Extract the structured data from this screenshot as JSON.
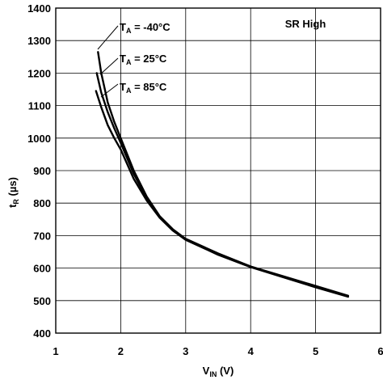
{
  "chart_data": {
    "type": "line",
    "title": "",
    "xlabel": "V",
    "xlabel_sub": "IN",
    "xlabel_unit": "(V)",
    "ylabel": "t",
    "ylabel_sub": "R",
    "ylabel_unit": "(µs)",
    "xlim": [
      1,
      6
    ],
    "ylim": [
      400,
      1400
    ],
    "x_ticks": [
      "1",
      "2",
      "3",
      "4",
      "5",
      "6"
    ],
    "y_ticks": [
      "400",
      "500",
      "600",
      "700",
      "800",
      "900",
      "1000",
      "1100",
      "1200",
      "1300",
      "1400"
    ],
    "grid": true,
    "annotation_box": "SR High",
    "series": [
      {
        "name": "T_A = -40°C",
        "label_main": "T",
        "label_sub": "A",
        "label_rest": " = -40°C",
        "color": "#000000",
        "x": [
          1.65,
          1.7,
          1.8,
          1.9,
          2.0,
          2.2,
          2.4,
          2.6,
          2.8,
          3.0,
          3.5,
          4.0,
          4.5,
          5.0,
          5.5
        ],
        "y": [
          1265,
          1200,
          1110,
          1050,
          1000,
          900,
          820,
          760,
          720,
          690,
          645,
          605,
          575,
          545,
          515
        ]
      },
      {
        "name": "T_A = 25°C",
        "label_main": "T",
        "label_sub": "A",
        "label_rest": " = 25°C",
        "color": "#000000",
        "x": [
          1.63,
          1.7,
          1.8,
          1.9,
          2.0,
          2.2,
          2.4,
          2.6,
          2.8,
          3.0,
          3.5,
          4.0,
          4.5,
          5.0,
          5.5
        ],
        "y": [
          1200,
          1140,
          1080,
          1030,
          985,
          890,
          815,
          758,
          718,
          688,
          643,
          605,
          573,
          543,
          514
        ]
      },
      {
        "name": "T_A = 85°C",
        "label_main": "T",
        "label_sub": "A",
        "label_rest": " = 85°C",
        "color": "#000000",
        "x": [
          1.62,
          1.7,
          1.8,
          1.9,
          2.0,
          2.2,
          2.4,
          2.6,
          2.8,
          3.0,
          3.5,
          4.0,
          4.5,
          5.0,
          5.5
        ],
        "y": [
          1145,
          1095,
          1040,
          1000,
          965,
          875,
          808,
          755,
          716,
          687,
          641,
          603,
          572,
          541,
          512
        ]
      }
    ]
  }
}
